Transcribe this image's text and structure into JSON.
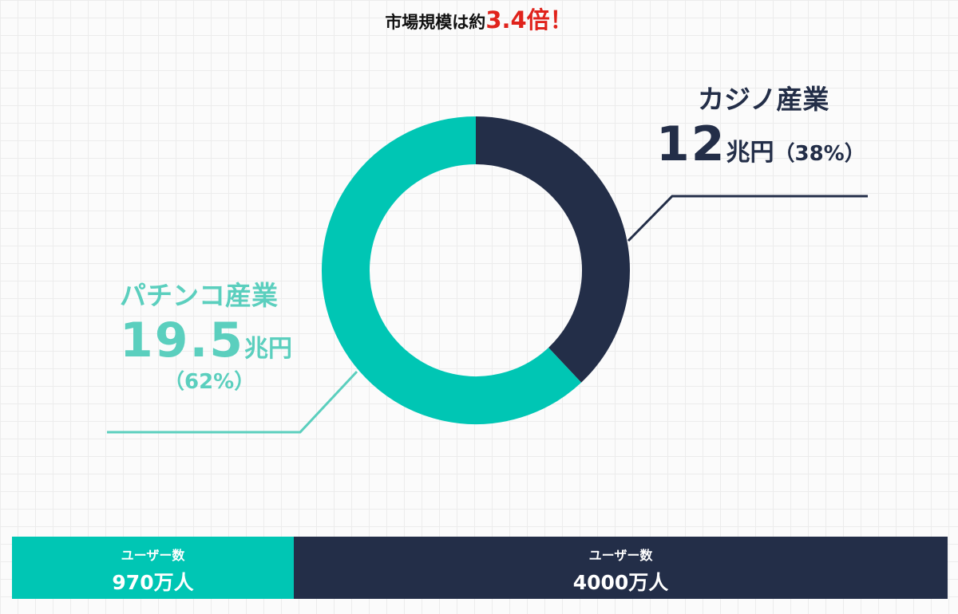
{
  "headline": {
    "prefix": "市場規模は約",
    "highlight": "3.4倍！"
  },
  "chart_data": {
    "type": "pie",
    "title": "",
    "slices": [
      {
        "name": "カジノ産業",
        "value": 12,
        "unit": "兆円",
        "percent_label": "（38%）",
        "percent": 38,
        "color": "#232e48"
      },
      {
        "name": "パチンコ産業",
        "value": 19.5,
        "unit": "兆円",
        "percent_label": "（62%）",
        "percent": 62,
        "color": "#00c6b4"
      }
    ]
  },
  "labels": {
    "casino": {
      "name": "カジノ産業",
      "value": "12",
      "unit": "兆円",
      "pct": "（38%）"
    },
    "pachinko": {
      "name": "パチンコ産業",
      "value": "19.5",
      "unit": "兆円",
      "pct": "（62%）"
    }
  },
  "users": {
    "pachinko": {
      "label": "ユーザー数",
      "value": "970万人",
      "count": 970,
      "color": "#00c6b4"
    },
    "casino": {
      "label": "ユーザー数",
      "value": "4000万人",
      "count": 4000,
      "color": "#232e48"
    }
  }
}
